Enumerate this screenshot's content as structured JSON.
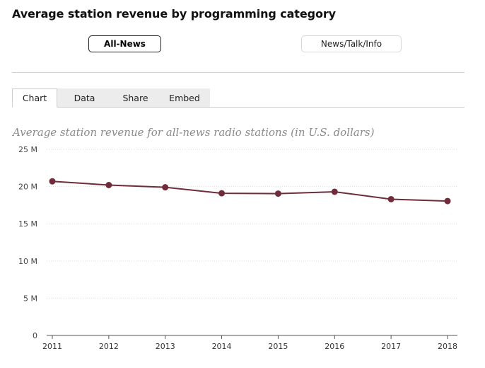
{
  "header": {
    "title": "Average station revenue by programming category"
  },
  "categories": {
    "active": "All-News",
    "inactive": "News/Talk/Info"
  },
  "tabs": [
    "Chart",
    "Data",
    "Share",
    "Embed"
  ],
  "chart_data": {
    "type": "line",
    "title": "Average station revenue for all-news radio stations (in U.S. dollars)",
    "x": [
      "2011",
      "2012",
      "2013",
      "2014",
      "2015",
      "2016",
      "2017",
      "2018"
    ],
    "values": [
      20.7,
      20.2,
      19.9,
      19.1,
      19.05,
      19.3,
      18.3,
      18.05
    ],
    "y_unit": "M",
    "ylim": [
      0,
      25
    ],
    "yticks": [
      "0",
      "5 M",
      "10 M",
      "15 M",
      "20 M",
      "25 M"
    ],
    "grid": true,
    "series_color": "#6f2c3a"
  }
}
